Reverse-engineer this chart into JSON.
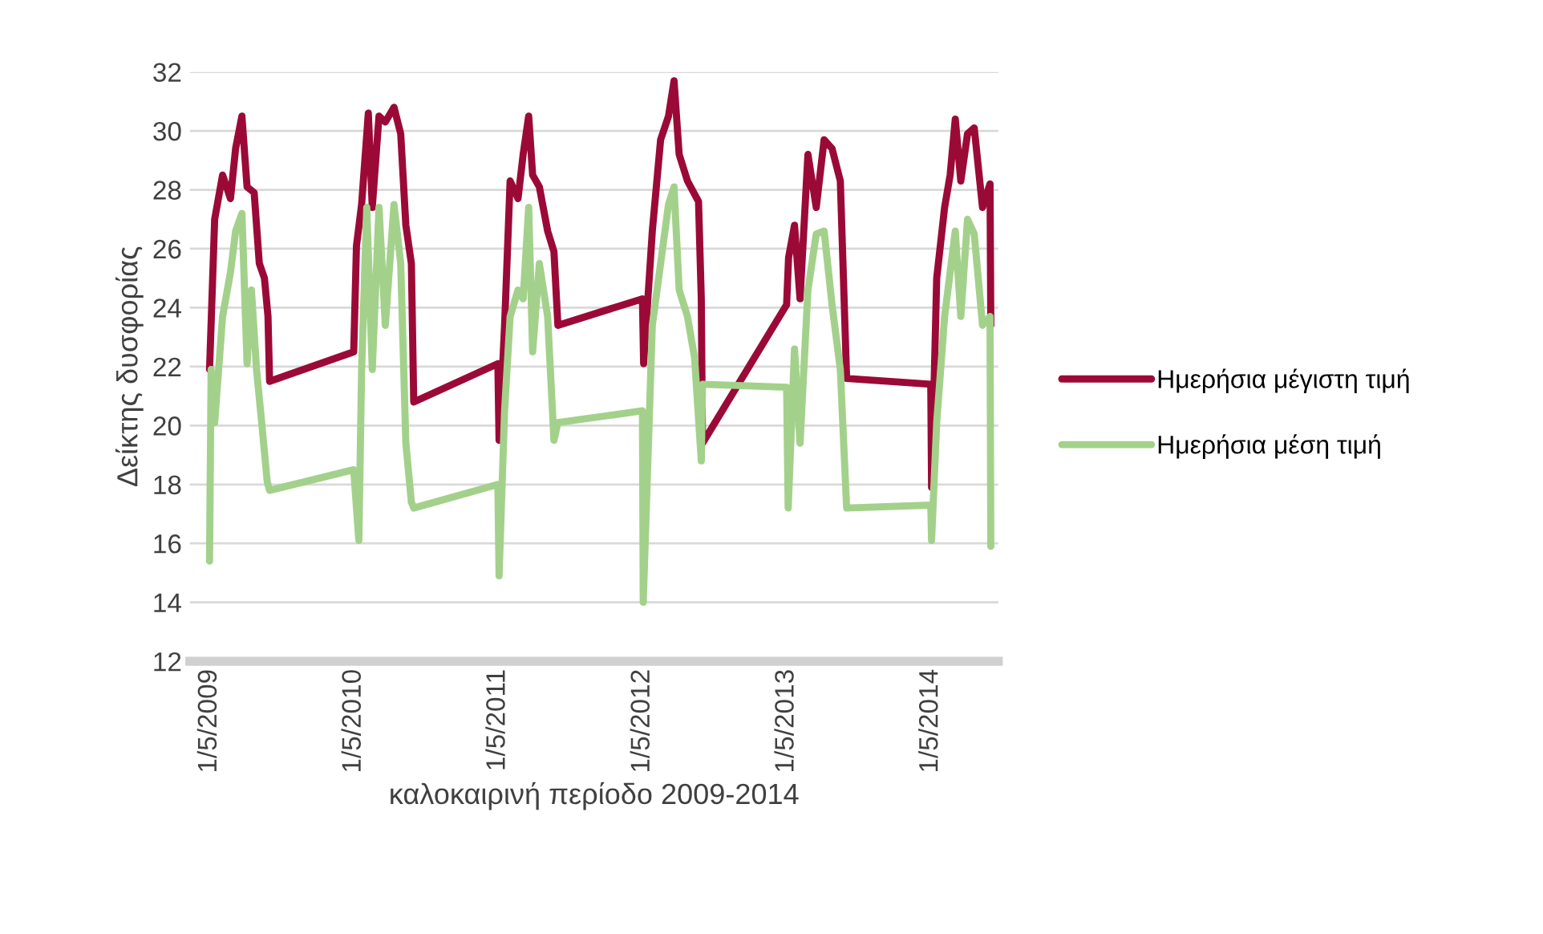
{
  "chart_data": {
    "type": "line",
    "xlabel": "καλοκαιρινή περίοδο 2009-2014",
    "ylabel": "Δείκτης δυσφορίας",
    "xlim": [
      "2009-03-12",
      "2014-10-19"
    ],
    "xticks": [
      {
        "value": "2009-05-01",
        "label": "1/5/2009"
      },
      {
        "value": "2010-05-01",
        "label": "1/5/2010"
      },
      {
        "value": "2011-05-01",
        "label": "1/5/2011"
      },
      {
        "value": "2012-05-01",
        "label": "1/5/2012"
      },
      {
        "value": "2013-05-01",
        "label": "1/5/2013"
      },
      {
        "value": "2014-05-01",
        "label": "1/5/2014"
      }
    ],
    "ylim": [
      12,
      32
    ],
    "yticks": [
      12,
      14,
      16,
      18,
      20,
      22,
      24,
      26,
      28,
      30,
      32
    ],
    "grid": "y",
    "legend": "right",
    "marker": "none",
    "line_style": "solid",
    "series": [
      {
        "name": "Ημερήσια μέγιστη τιμή",
        "color": "#9b0a37",
        "x": [
          "2009-05-01",
          "2009-05-14",
          "2009-06-03",
          "2009-06-23",
          "2009-07-06",
          "2009-07-22",
          "2009-08-04",
          "2009-08-22",
          "2009-09-04",
          "2009-09-17",
          "2009-09-26",
          "2009-09-30",
          "2010-05-01",
          "2010-05-08",
          "2010-05-21",
          "2010-06-07",
          "2010-06-17",
          "2010-07-04",
          "2010-07-20",
          "2010-08-11",
          "2010-08-28",
          "2010-09-10",
          "2010-09-24",
          "2010-09-30",
          "2011-05-01",
          "2011-05-04",
          "2011-05-18",
          "2011-06-01",
          "2011-06-21",
          "2011-07-04",
          "2011-07-18",
          "2011-07-28",
          "2011-08-14",
          "2011-09-04",
          "2011-09-20",
          "2011-09-30",
          "2012-05-01",
          "2012-05-04",
          "2012-05-26",
          "2012-06-16",
          "2012-07-06",
          "2012-07-20",
          "2012-08-02",
          "2012-08-23",
          "2012-09-20",
          "2012-09-27",
          "2012-09-30",
          "2013-05-01",
          "2013-05-06",
          "2013-05-21",
          "2013-06-04",
          "2013-06-24",
          "2013-07-15",
          "2013-08-04",
          "2013-08-24",
          "2013-09-14",
          "2013-09-30",
          "2014-05-01",
          "2014-05-03",
          "2014-05-16",
          "2014-06-05",
          "2014-06-19",
          "2014-07-02",
          "2014-07-16",
          "2014-08-02",
          "2014-08-19",
          "2014-09-09",
          "2014-09-28",
          "2014-09-30"
        ],
        "values": [
          21.9,
          27.0,
          28.5,
          27.7,
          29.4,
          30.5,
          28.1,
          27.9,
          25.5,
          25.0,
          23.7,
          21.5,
          22.5,
          26.1,
          27.5,
          30.6,
          27.4,
          30.5,
          30.3,
          30.8,
          29.9,
          26.8,
          25.5,
          20.8,
          22.1,
          19.5,
          23.4,
          28.3,
          27.7,
          29.2,
          30.5,
          28.5,
          28.1,
          26.6,
          25.9,
          23.4,
          24.3,
          22.1,
          26.6,
          29.7,
          30.5,
          31.7,
          29.2,
          28.3,
          27.6,
          24.3,
          19.4,
          24.1,
          25.7,
          26.8,
          24.3,
          29.2,
          27.4,
          29.7,
          29.4,
          28.3,
          21.6,
          21.4,
          17.9,
          25.0,
          27.4,
          28.5,
          30.4,
          28.3,
          29.9,
          30.1,
          27.4,
          28.2,
          23.4
        ]
      },
      {
        "name": "Ημερήσια μέση τιμή",
        "color": "#a3d18b",
        "x": [
          "2009-05-01",
          "2009-05-05",
          "2009-05-14",
          "2009-06-03",
          "2009-06-23",
          "2009-07-06",
          "2009-07-22",
          "2009-08-04",
          "2009-08-15",
          "2009-08-28",
          "2009-09-10",
          "2009-09-24",
          "2009-09-30",
          "2010-05-01",
          "2010-05-14",
          "2010-05-21",
          "2010-06-03",
          "2010-06-17",
          "2010-07-04",
          "2010-07-20",
          "2010-08-11",
          "2010-08-28",
          "2010-09-10",
          "2010-09-24",
          "2010-09-30",
          "2011-05-01",
          "2011-05-04",
          "2011-05-18",
          "2011-06-01",
          "2011-06-21",
          "2011-07-04",
          "2011-07-18",
          "2011-07-28",
          "2011-08-14",
          "2011-09-04",
          "2011-09-20",
          "2011-09-30",
          "2012-05-01",
          "2012-05-03",
          "2012-05-26",
          "2012-06-16",
          "2012-07-06",
          "2012-07-20",
          "2012-08-02",
          "2012-08-23",
          "2012-09-10",
          "2012-09-27",
          "2012-09-30",
          "2013-05-01",
          "2013-05-05",
          "2013-05-21",
          "2013-06-04",
          "2013-06-24",
          "2013-07-15",
          "2013-08-04",
          "2013-08-24",
          "2013-09-14",
          "2013-09-30",
          "2014-05-01",
          "2014-05-03",
          "2014-05-16",
          "2014-06-05",
          "2014-06-19",
          "2014-07-02",
          "2014-07-16",
          "2014-08-02",
          "2014-08-19",
          "2014-09-09",
          "2014-09-28",
          "2014-09-30"
        ],
        "values": [
          15.4,
          21.9,
          20.1,
          23.7,
          25.2,
          26.6,
          27.2,
          22.1,
          24.6,
          21.9,
          20.1,
          18.1,
          17.8,
          18.5,
          16.1,
          21.9,
          27.4,
          21.9,
          27.4,
          23.4,
          27.5,
          25.5,
          19.4,
          17.4,
          17.2,
          18.0,
          14.9,
          20.5,
          23.7,
          24.6,
          24.3,
          27.4,
          22.5,
          25.5,
          23.7,
          19.5,
          20.1,
          20.5,
          14.0,
          23.4,
          25.5,
          27.5,
          28.1,
          24.6,
          23.7,
          22.3,
          18.8,
          21.4,
          21.3,
          17.2,
          22.6,
          19.4,
          24.6,
          26.5,
          26.6,
          24.1,
          21.9,
          17.2,
          17.3,
          16.1,
          20.1,
          23.7,
          25.2,
          26.6,
          23.7,
          27.0,
          26.5,
          23.4,
          23.7,
          15.9
        ]
      }
    ]
  }
}
